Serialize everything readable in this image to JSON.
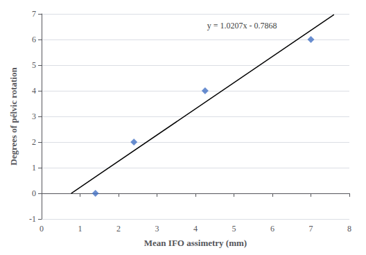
{
  "chart_data": {
    "type": "scatter",
    "xlabel": "Mean IFO assimetry (mm)",
    "ylabel": "Degrees of pélvic rotation",
    "series": [
      {
        "type": "scatter",
        "x": [
          1.4,
          2.4,
          4.25,
          7.0
        ],
        "values": [
          0,
          2,
          4,
          6
        ],
        "color": "#4472C4",
        "marker": "diamond"
      },
      {
        "type": "line",
        "x": [
          0.77,
          7.6
        ],
        "values": [
          -0.000861,
          6.97052
        ],
        "color": "#000000"
      }
    ],
    "annotations": [
      {
        "text": "y = 1.0207x - 0.7868",
        "x": 4.3,
        "y": 6.55
      }
    ],
    "xlim": [
      0,
      8
    ],
    "ylim": [
      -1,
      7
    ],
    "xticks": [
      0,
      1,
      2,
      3,
      4,
      5,
      6,
      7,
      8
    ],
    "yticks": [
      -1,
      0,
      1,
      2,
      3,
      4,
      5,
      6,
      7
    ],
    "grid": "y"
  }
}
